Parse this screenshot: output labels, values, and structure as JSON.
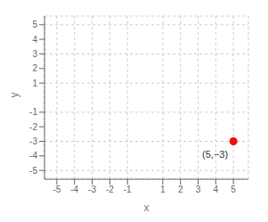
{
  "chart_data": {
    "type": "scatter",
    "x": [
      5
    ],
    "values": [
      -3
    ],
    "color": "#ee1111",
    "xlabel": "x",
    "ylabel": "y",
    "xlim": [
      -5.7,
      5.85
    ],
    "ylim": [
      -5.6,
      5.6
    ],
    "xticks": [
      -5,
      -4,
      -3,
      -2,
      -1,
      1,
      2,
      3,
      4,
      5
    ],
    "yticks": [
      -5,
      -4,
      -3,
      -2,
      -1,
      1,
      2,
      3,
      4,
      5
    ],
    "grid": true,
    "annotations": [
      {
        "text": "(5,−3)",
        "x": 5,
        "y": -3
      }
    ]
  }
}
